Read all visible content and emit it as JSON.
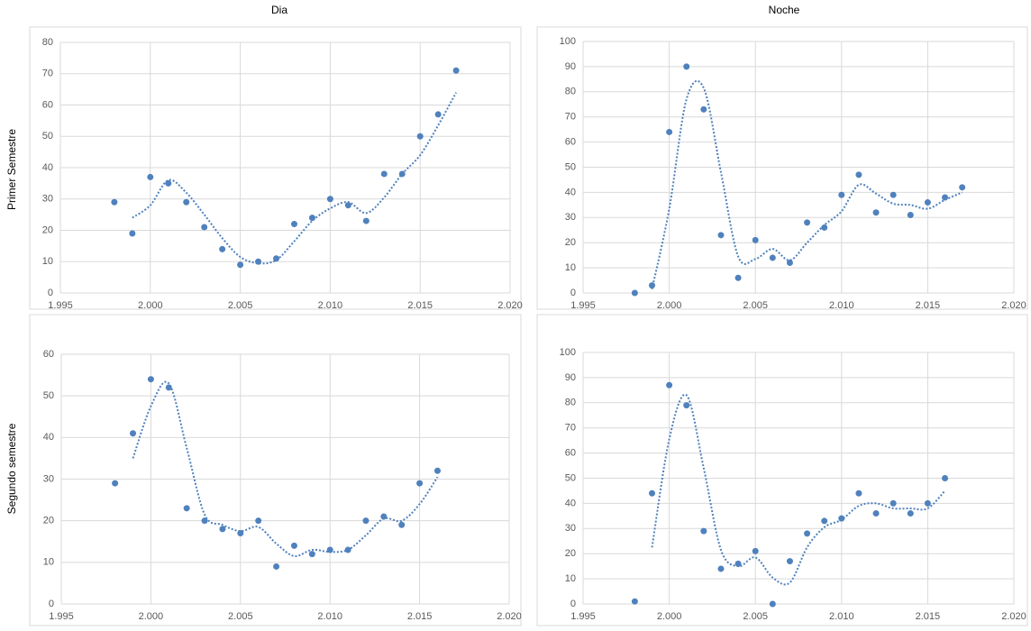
{
  "column_titles": [
    "Dia",
    "Noche"
  ],
  "row_titles": [
    "Primer Semestre",
    "Segundo semestre"
  ],
  "chart_data": [
    {
      "type": "scatter",
      "x": [
        1998,
        1999,
        2000,
        2001,
        2002,
        2003,
        2004,
        2005,
        2006,
        2007,
        2008,
        2009,
        2010,
        2011,
        2012,
        2013,
        2014,
        2015,
        2016,
        2017
      ],
      "series": [
        {
          "color": "#4f81bd",
          "values": [
            29,
            19,
            37,
            35,
            29,
            21,
            14,
            9,
            10,
            11,
            22,
            24,
            30,
            28,
            23,
            38,
            38,
            50,
            57,
            71
          ]
        },
        {
          "color": "#4f81bd",
          "style": "dotted",
          "values": [
            null,
            24,
            28,
            36,
            32,
            25,
            17.5,
            11.5,
            9.5,
            10.5,
            16.5,
            23,
            27,
            29,
            25.5,
            30.5,
            38,
            44,
            53.5,
            64
          ]
        }
      ],
      "xlim": [
        1995,
        2020
      ],
      "xticks": [
        {
          "value": 1995,
          "label": "1.995"
        },
        {
          "value": 2000,
          "label": "2.000"
        },
        {
          "value": 2005,
          "label": "2.005"
        },
        {
          "value": 2010,
          "label": "2.010"
        },
        {
          "value": 2015,
          "label": "2.015"
        },
        {
          "value": 2020,
          "label": "2.020"
        }
      ],
      "ylim": [
        0,
        80
      ],
      "yticks": [
        0,
        10,
        20,
        30,
        40,
        50,
        60,
        70,
        80
      ],
      "grid": true
    },
    {
      "type": "scatter",
      "x": [
        1998,
        1999,
        2000,
        2001,
        2002,
        2003,
        2004,
        2005,
        2006,
        2007,
        2008,
        2009,
        2010,
        2011,
        2012,
        2013,
        2014,
        2015,
        2016,
        2017
      ],
      "series": [
        {
          "color": "#4f81bd",
          "values": [
            0,
            3,
            64,
            90,
            73,
            23,
            6,
            21,
            14,
            12,
            28,
            26,
            39,
            47,
            32,
            39,
            31,
            36,
            38,
            42
          ]
        },
        {
          "color": "#4f81bd",
          "style": "dotted",
          "values": [
            null,
            1.5,
            33.5,
            77,
            81.5,
            48,
            14.5,
            13.5,
            17.5,
            13,
            20,
            27,
            32.5,
            43,
            39.5,
            35.5,
            35,
            33.5,
            37,
            40
          ]
        }
      ],
      "xlim": [
        1995,
        2020
      ],
      "xticks": [
        {
          "value": 1995,
          "label": "1.995"
        },
        {
          "value": 2000,
          "label": "2.000"
        },
        {
          "value": 2005,
          "label": "2.005"
        },
        {
          "value": 2010,
          "label": "2.010"
        },
        {
          "value": 2015,
          "label": "2.015"
        },
        {
          "value": 2020,
          "label": "2.020"
        }
      ],
      "ylim": [
        0,
        100
      ],
      "yticks": [
        0,
        10,
        20,
        30,
        40,
        50,
        60,
        70,
        80,
        90,
        100
      ],
      "grid": true
    },
    {
      "type": "scatter",
      "x": [
        1998,
        1999,
        2000,
        2001,
        2002,
        2003,
        2004,
        2005,
        2006,
        2007,
        2008,
        2009,
        2010,
        2011,
        2012,
        2013,
        2014,
        2015,
        2016
      ],
      "series": [
        {
          "color": "#4f81bd",
          "values": [
            29,
            41,
            54,
            52,
            23,
            20,
            18,
            17,
            20,
            9,
            14,
            12,
            13,
            13,
            20,
            21,
            19,
            29,
            32
          ]
        },
        {
          "color": "#4f81bd",
          "style": "dotted",
          "values": [
            null,
            35,
            47.5,
            53,
            37.5,
            21.5,
            19,
            17.5,
            18.5,
            14.5,
            11.5,
            13,
            12.5,
            13,
            16.5,
            20.5,
            20,
            24,
            30.5
          ]
        }
      ],
      "xlim": [
        1995,
        2020
      ],
      "xticks": [
        {
          "value": 1995,
          "label": "1.995"
        },
        {
          "value": 2000,
          "label": "2.000"
        },
        {
          "value": 2005,
          "label": "2.005"
        },
        {
          "value": 2010,
          "label": "2.010"
        },
        {
          "value": 2015,
          "label": "2.015"
        },
        {
          "value": 2020,
          "label": "2.020"
        }
      ],
      "ylim": [
        0,
        60
      ],
      "yticks": [
        0,
        10,
        20,
        30,
        40,
        50,
        60
      ],
      "grid": true
    },
    {
      "type": "scatter",
      "x": [
        1998,
        1999,
        2000,
        2001,
        2002,
        2003,
        2004,
        2005,
        2006,
        2007,
        2008,
        2009,
        2010,
        2011,
        2012,
        2013,
        2014,
        2015,
        2016
      ],
      "series": [
        {
          "color": "#4f81bd",
          "values": [
            1,
            44,
            87,
            79,
            29,
            14,
            16,
            21,
            0,
            17,
            28,
            33,
            34,
            44,
            36,
            40,
            36,
            40,
            50
          ]
        },
        {
          "color": "#4f81bd",
          "style": "dotted",
          "values": [
            null,
            22.5,
            65.5,
            83,
            54,
            21.5,
            15,
            18.5,
            10.5,
            8.5,
            22.5,
            30.5,
            33.5,
            39,
            40,
            38,
            38,
            38,
            45
          ]
        }
      ],
      "xlim": [
        1995,
        2020
      ],
      "xticks": [
        {
          "value": 1995,
          "label": "1.995"
        },
        {
          "value": 2000,
          "label": "2.000"
        },
        {
          "value": 2005,
          "label": "2.005"
        },
        {
          "value": 2010,
          "label": "2.010"
        },
        {
          "value": 2015,
          "label": "2.015"
        },
        {
          "value": 2020,
          "label": "2.020"
        }
      ],
      "ylim": [
        0,
        100
      ],
      "yticks": [
        0,
        10,
        20,
        30,
        40,
        50,
        60,
        70,
        80,
        90,
        100
      ],
      "grid": true
    }
  ]
}
